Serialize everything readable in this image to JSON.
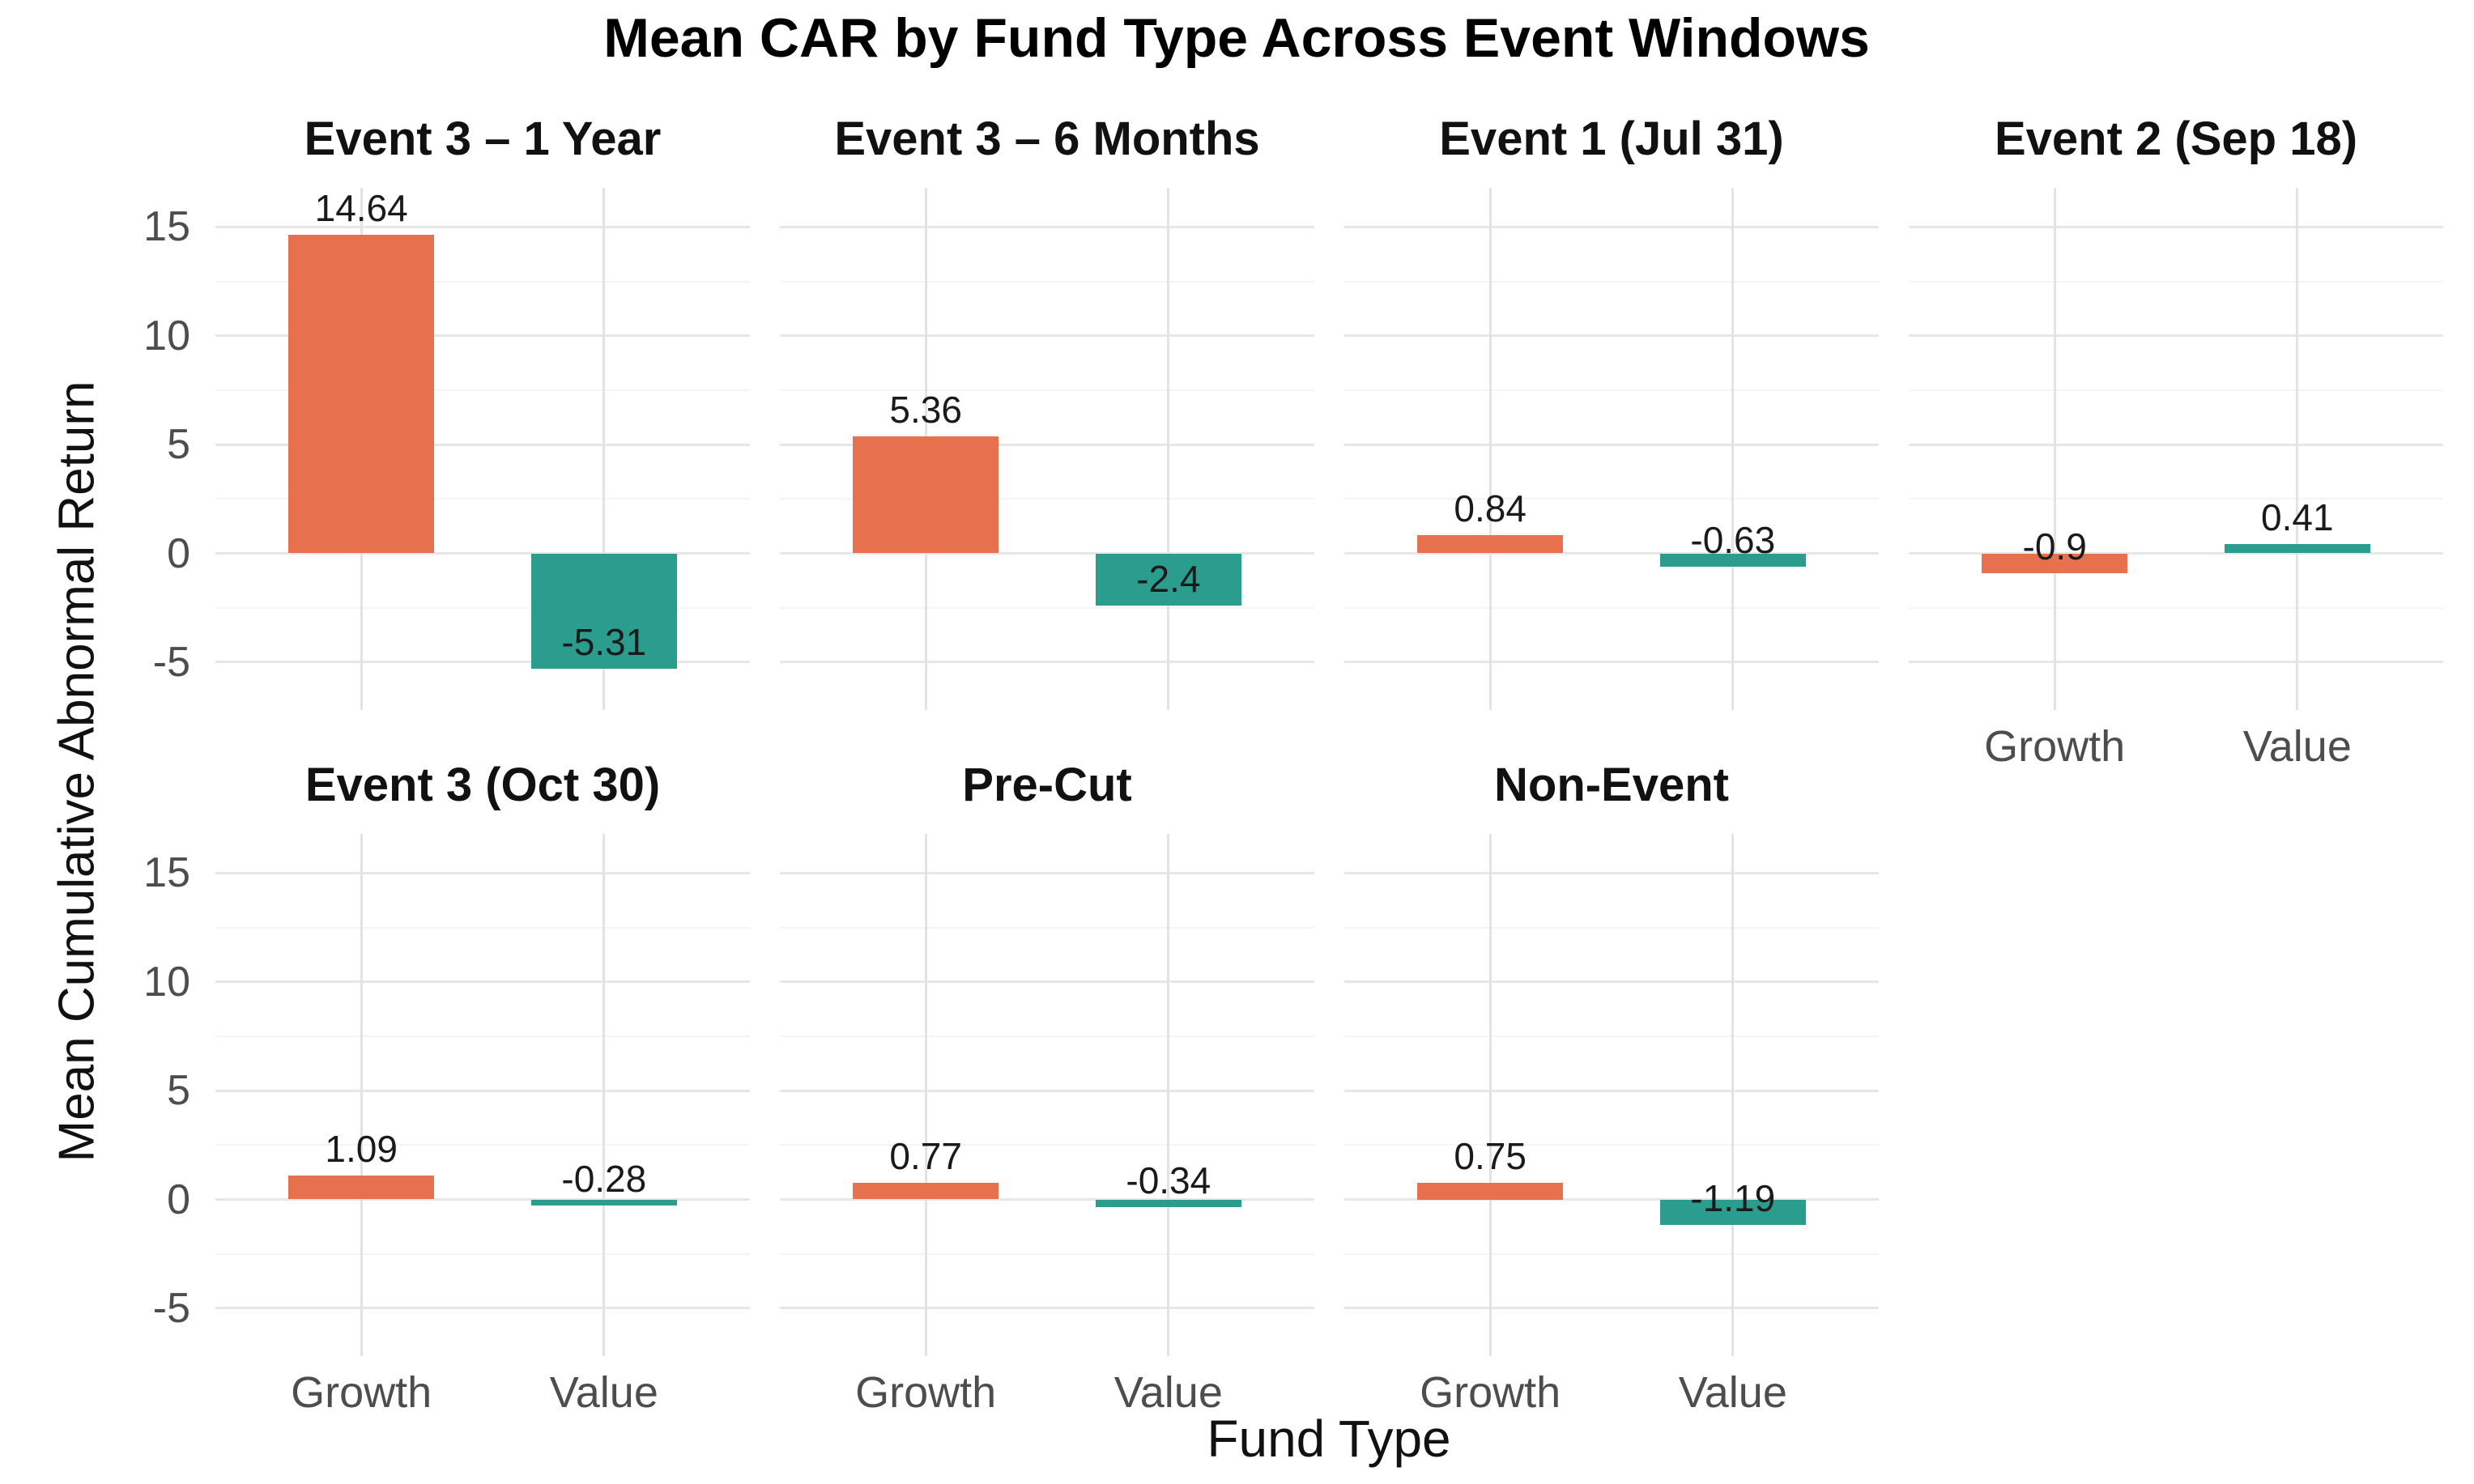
{
  "chart_data": {
    "type": "bar",
    "title": "Mean CAR by Fund Type Across Event Windows",
    "xlabel": "Fund Type",
    "ylabel": "Mean Cumulative Abnormal Return",
    "categories": [
      "Growth",
      "Value"
    ],
    "legend_position": "none",
    "grid": true,
    "ylim": [
      -7.2,
      16.8
    ],
    "y_major_ticks": [
      15,
      10,
      5,
      0,
      -5
    ],
    "y_minor_gridlines": [
      12.5,
      7.5,
      2.5,
      -2.5
    ],
    "colors": {
      "Growth": "#E7714F",
      "Value": "#2A9D8F",
      "axis_text": "#4d4d4d",
      "grid_major": "#e7e7e7",
      "grid_minor": "#f4f4f4",
      "grid_vertical": "#e3e3e3"
    },
    "facets": [
      {
        "title": "Event 3 – 1 Year",
        "values": [
          14.64,
          -5.31
        ],
        "labels": [
          "14.64",
          "-5.31"
        ],
        "show_x_labels": false
      },
      {
        "title": "Event 3 – 6 Months",
        "values": [
          5.36,
          -2.4
        ],
        "labels": [
          "5.36",
          "-2.4"
        ],
        "show_x_labels": false
      },
      {
        "title": "Event 1 (Jul 31)",
        "values": [
          0.84,
          -0.63
        ],
        "labels": [
          "0.84",
          "-0.63"
        ],
        "show_x_labels": false
      },
      {
        "title": "Event 2 (Sep 18)",
        "values": [
          -0.9,
          0.41
        ],
        "labels": [
          "-0.9",
          "0.41"
        ],
        "show_x_labels": true
      },
      {
        "title": "Event 3 (Oct 30)",
        "values": [
          1.09,
          -0.28
        ],
        "labels": [
          "1.09",
          "-0.28"
        ],
        "show_x_labels": true
      },
      {
        "title": "Pre-Cut",
        "values": [
          0.77,
          -0.34
        ],
        "labels": [
          "0.77",
          "-0.34"
        ],
        "show_x_labels": true
      },
      {
        "title": "Non-Event",
        "values": [
          0.75,
          -1.19
        ],
        "labels": [
          "0.75",
          "-1.19"
        ],
        "show_x_labels": true
      }
    ]
  }
}
